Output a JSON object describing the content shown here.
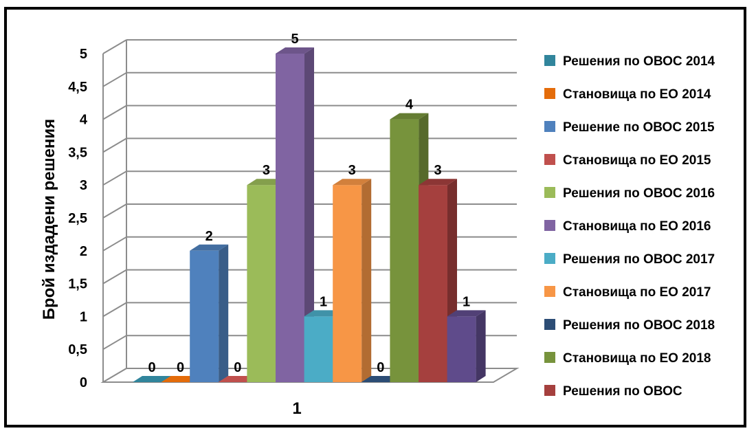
{
  "chart_data": {
    "type": "bar",
    "style": "3d-clustered-column",
    "categories": [
      "1"
    ],
    "ylabel": "Брой издадени решения",
    "xlabel": "",
    "ylim": [
      0,
      5
    ],
    "y_ticks": [
      "0",
      "0,5",
      "1",
      "1,5",
      "2",
      "2,5",
      "3",
      "3,5",
      "4",
      "4,5",
      "5"
    ],
    "grid": true,
    "legend_position": "right",
    "series": [
      {
        "name": "Решения  по ОВОС 2014",
        "values": [
          0
        ],
        "color": "#31859C"
      },
      {
        "name": "Становища по ЕО 2014",
        "values": [
          0
        ],
        "color": "#E46C0A"
      },
      {
        "name": "Решение  по ОВОС 2015",
        "values": [
          2
        ],
        "color": "#4F81BD"
      },
      {
        "name": "Становища по ЕО 2015",
        "values": [
          0
        ],
        "color": "#C0504D"
      },
      {
        "name": "Решения  по ОВОС 2016",
        "values": [
          3
        ],
        "color": "#9BBB59"
      },
      {
        "name": "Становища по ЕО 2016",
        "values": [
          5
        ],
        "color": "#8064A2"
      },
      {
        "name": "Решения  по ОВОС 2017",
        "values": [
          1
        ],
        "color": "#4BACC6"
      },
      {
        "name": "Становища по ЕО 2017",
        "values": [
          3
        ],
        "color": "#F79646"
      },
      {
        "name": "Решения  по ОВОС 2018",
        "values": [
          0
        ],
        "color": "#2C4D75"
      },
      {
        "name": "Становища по ЕО 2018",
        "values": [
          4
        ],
        "color": "#77933C"
      },
      {
        "name": "Решения  по ОВОС",
        "values": [
          3
        ],
        "color": "#A5403E"
      },
      {
        "name": "",
        "values": [
          1
        ],
        "color": "#5F4B8B"
      }
    ]
  }
}
